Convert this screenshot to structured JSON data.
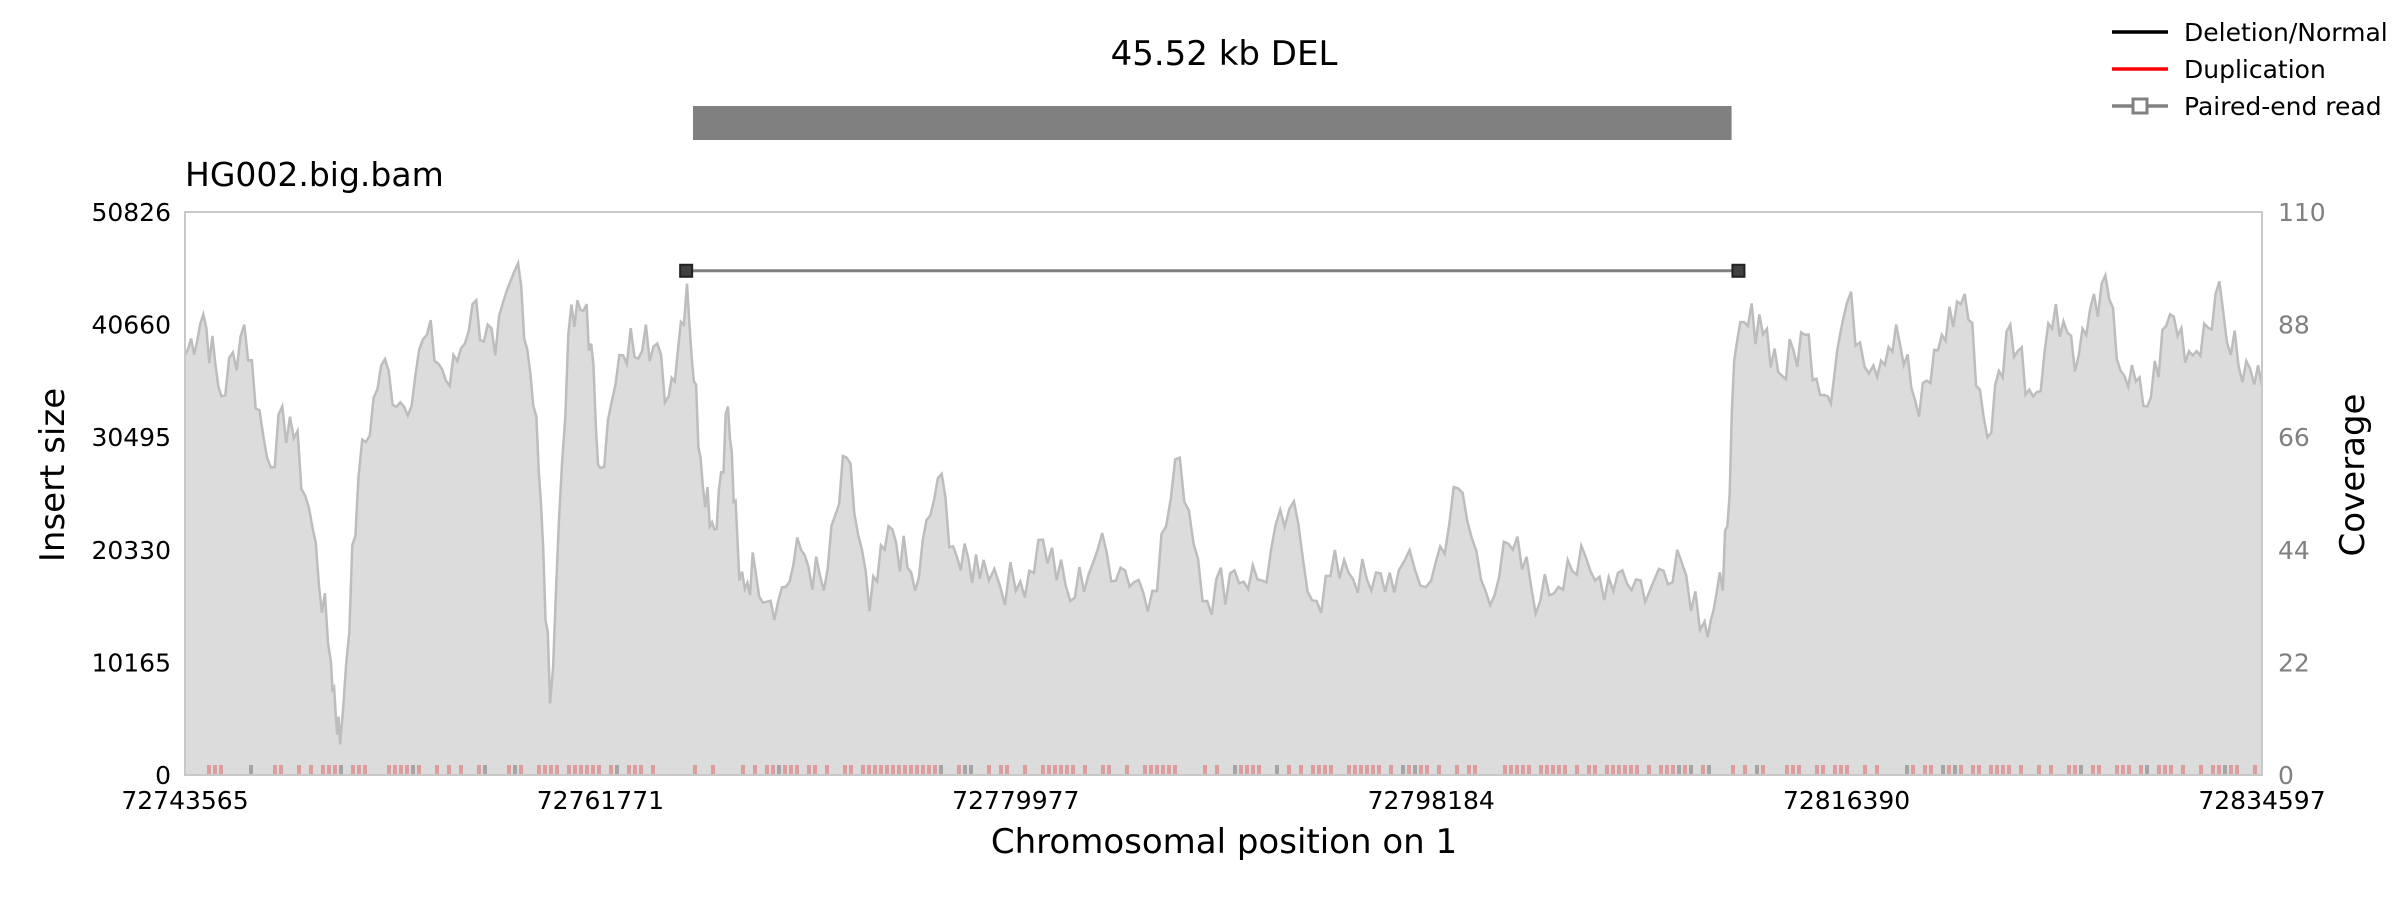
{
  "chart_data": {
    "type": "area",
    "title": "45.52 kb DEL",
    "sample_label": "HG002.big.bam",
    "xlabel": "Chromosomal position on 1",
    "ylabel_left": "Insert size",
    "ylabel_right": "Coverage",
    "xlim": [
      72743565,
      72834597
    ],
    "x_ticks": [
      "72743565",
      "72761771",
      "72779977",
      "72798184",
      "72816390",
      "72834597"
    ],
    "ylim_left": [
      0,
      50826
    ],
    "y_ticks_left": [
      "0",
      "10165",
      "20330",
      "30495",
      "40660",
      "50826"
    ],
    "ylim_right": [
      0,
      110
    ],
    "y_ticks_right": [
      "0",
      "22",
      "44",
      "66",
      "88",
      "110"
    ],
    "legend_placement": "top-right",
    "legend": [
      {
        "label": "Deletion/Normal",
        "color": "#000000",
        "style": "line"
      },
      {
        "label": "Duplication",
        "color": "#ff0000",
        "style": "line"
      },
      {
        "label": "Paired-end read",
        "color": "#808080",
        "style": "line-square"
      }
    ],
    "sv_bar": {
      "start": 72765830,
      "end": 72811350,
      "color": "#808080"
    },
    "paired_end_read": {
      "start": 72765530,
      "end": 72811650,
      "insert_size": 45520
    },
    "coverage_series": {
      "name": "",
      "color": "#bdbdbd",
      "fill": "#dcdcdc",
      "points": [
        [
          72743565,
          82
        ],
        [
          72744365,
          90
        ],
        [
          72745165,
          74
        ],
        [
          72746165,
          88
        ],
        [
          72747165,
          62
        ],
        [
          72748165,
          70
        ],
        [
          72749165,
          48
        ],
        [
          72749965,
          22
        ],
        [
          72750365,
          6
        ],
        [
          72751165,
          58
        ],
        [
          72752165,
          80
        ],
        [
          72753165,
          72
        ],
        [
          72754165,
          86
        ],
        [
          72755165,
          76
        ],
        [
          72756165,
          92
        ],
        [
          72757165,
          82
        ],
        [
          72758165,
          100
        ],
        [
          72758965,
          70
        ],
        [
          72759565,
          14
        ],
        [
          72760365,
          86
        ],
        [
          72761165,
          92
        ],
        [
          72761771,
          60
        ],
        [
          72762765,
          82
        ],
        [
          72763765,
          88
        ],
        [
          72764765,
          74
        ],
        [
          72765565,
          96
        ],
        [
          72766165,
          62
        ],
        [
          72766765,
          48
        ],
        [
          72767365,
          72
        ],
        [
          72767865,
          38
        ],
        [
          72768565,
          40
        ],
        [
          72769565,
          34
        ],
        [
          72770565,
          44
        ],
        [
          72771565,
          36
        ],
        [
          72772565,
          62
        ],
        [
          72773565,
          32
        ],
        [
          72774565,
          48
        ],
        [
          72775565,
          36
        ],
        [
          72776565,
          58
        ],
        [
          72777565,
          40
        ],
        [
          72778565,
          42
        ],
        [
          72779977,
          36
        ],
        [
          72781165,
          46
        ],
        [
          72782365,
          34
        ],
        [
          72783565,
          44
        ],
        [
          72784765,
          40
        ],
        [
          72785965,
          36
        ],
        [
          72787165,
          62
        ],
        [
          72788365,
          34
        ],
        [
          72789565,
          40
        ],
        [
          72790765,
          38
        ],
        [
          72791965,
          52
        ],
        [
          72793165,
          34
        ],
        [
          72794365,
          42
        ],
        [
          72795565,
          36
        ],
        [
          72796765,
          40
        ],
        [
          72798184,
          38
        ],
        [
          72799365,
          56
        ],
        [
          72800565,
          36
        ],
        [
          72801765,
          44
        ],
        [
          72802965,
          34
        ],
        [
          72804165,
          42
        ],
        [
          72805365,
          38
        ],
        [
          72806565,
          40
        ],
        [
          72807765,
          36
        ],
        [
          72808965,
          44
        ],
        [
          72810165,
          30
        ],
        [
          72810965,
          36
        ],
        [
          72811565,
          84
        ],
        [
          72812565,
          90
        ],
        [
          72813565,
          78
        ],
        [
          72814565,
          86
        ],
        [
          72815565,
          74
        ],
        [
          72816390,
          92
        ],
        [
          72817565,
          80
        ],
        [
          72818565,
          88
        ],
        [
          72819565,
          70
        ],
        [
          72820565,
          86
        ],
        [
          72821565,
          94
        ],
        [
          72822565,
          66
        ],
        [
          72823565,
          88
        ],
        [
          72824565,
          74
        ],
        [
          72825565,
          92
        ],
        [
          72826565,
          82
        ],
        [
          72827565,
          96
        ],
        [
          72828565,
          78
        ],
        [
          72829565,
          72
        ],
        [
          72830565,
          90
        ],
        [
          72831565,
          82
        ],
        [
          72832565,
          94
        ],
        [
          72833565,
          80
        ],
        [
          72834597,
          76
        ]
      ]
    }
  }
}
